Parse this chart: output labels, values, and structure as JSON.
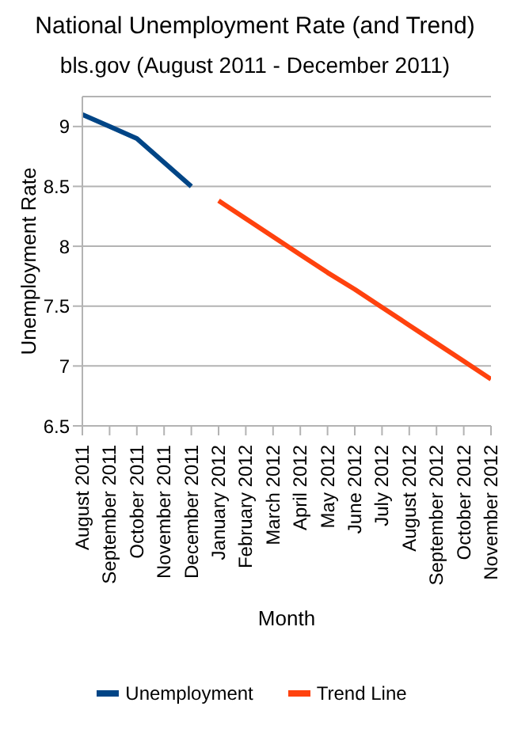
{
  "chart_data": {
    "type": "line",
    "title": "National Unemployment Rate (and Trend)",
    "subtitle": "bls.gov (August 2011 - December 2011)",
    "xlabel": "Month",
    "ylabel": "Unemployment Rate",
    "categories": [
      "August 2011",
      "September 2011",
      "October 2011",
      "November 2011",
      "December 2011",
      "January 2012",
      "February 2012",
      "March 2012",
      "April 2012",
      "May 2012",
      "June 2012",
      "July 2012",
      "August 2012",
      "September 2012",
      "October 2012",
      "November 2012"
    ],
    "series": [
      {
        "name": "Unemployment",
        "color": "#004586",
        "values": [
          9.1,
          9.0,
          8.9,
          8.7,
          8.5,
          null,
          null,
          null,
          null,
          null,
          null,
          null,
          null,
          null,
          null,
          null
        ]
      },
      {
        "name": "Trend Line",
        "color": "#ff420e",
        "values": [
          null,
          null,
          null,
          null,
          null,
          8.38,
          8.23,
          8.08,
          7.93,
          7.78,
          7.64,
          7.49,
          7.34,
          7.19,
          7.04,
          6.89
        ]
      }
    ],
    "ylim": [
      6.5,
      9.25
    ],
    "yticks": [
      6.5,
      7,
      7.5,
      8,
      8.5,
      9
    ],
    "grid": "y",
    "legend": "bottom",
    "marker": "none",
    "line_style": "solid"
  }
}
